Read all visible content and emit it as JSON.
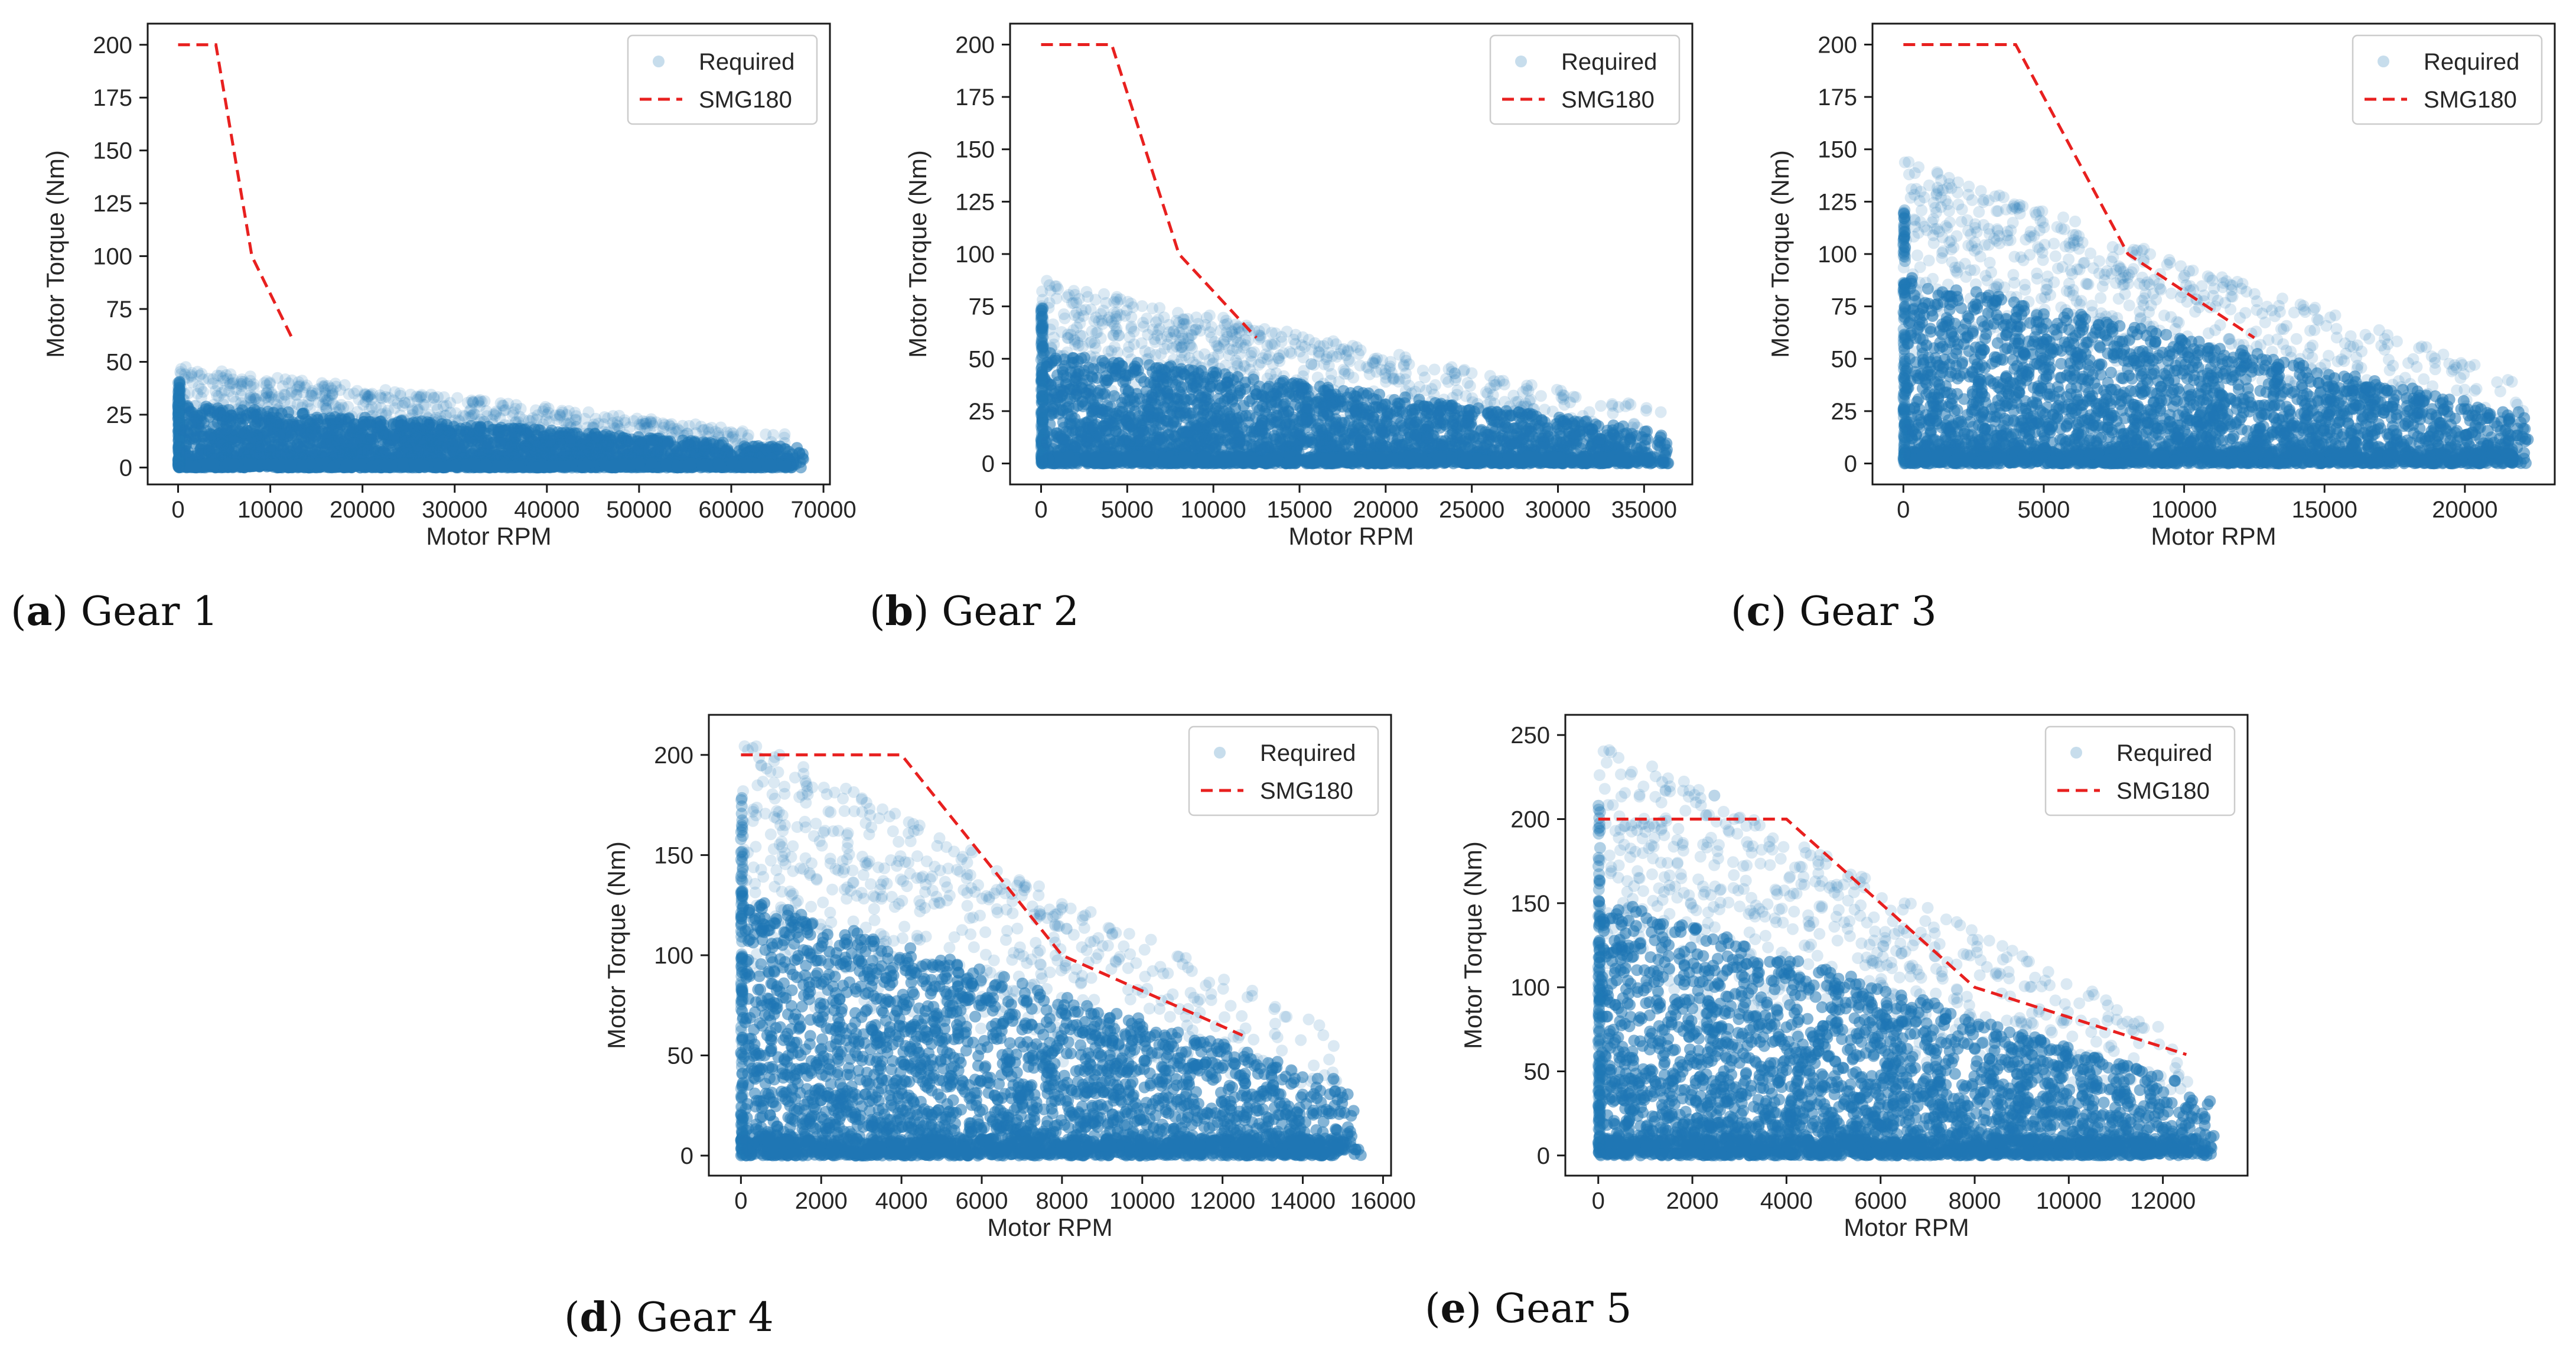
{
  "scatter_color": "#1f77b4",
  "curve_color": "#e8201f",
  "chart_data": [
    {
      "type": "scatter",
      "caption_letter": "a",
      "caption_text": "Gear 1",
      "xlabel": "Motor RPM",
      "ylabel": "Motor Torque (Nm)",
      "xlim": [
        -3300,
        70700
      ],
      "ylim": [
        -8,
        210
      ],
      "xticks": [
        0,
        10000,
        20000,
        30000,
        40000,
        50000,
        60000,
        70000
      ],
      "xtick_labels": [
        "0",
        "10000",
        "20000",
        "30000",
        "40000",
        "50000",
        "60000",
        "70000"
      ],
      "yticks": [
        0,
        25,
        50,
        75,
        100,
        125,
        150,
        175,
        200
      ],
      "ytick_labels": [
        "0",
        "25",
        "50",
        "75",
        "100",
        "125",
        "150",
        "175",
        "200"
      ],
      "legend_position": "top-right",
      "legend": [
        "Required",
        "SMG180"
      ],
      "scatter_envelope": {
        "x_max": 68000,
        "torque_at_zero": 48,
        "torque_at_max": 15
      },
      "series": [
        {
          "name": "SMG180",
          "style": "dashed",
          "x": [
            0,
            4100,
            8000,
            12500
          ],
          "y": [
            200,
            200,
            100,
            60
          ]
        }
      ]
    },
    {
      "type": "scatter",
      "caption_letter": "b",
      "caption_text": "Gear 2",
      "xlabel": "Motor RPM",
      "ylabel": "Motor Torque (Nm)",
      "xlim": [
        -1800,
        37800
      ],
      "ylim": [
        -10,
        210
      ],
      "xticks": [
        0,
        5000,
        10000,
        15000,
        20000,
        25000,
        30000,
        35000
      ],
      "xtick_labels": [
        "0",
        "5000",
        "10000",
        "15000",
        "20000",
        "25000",
        "30000",
        "35000"
      ],
      "yticks": [
        0,
        25,
        50,
        75,
        100,
        125,
        150,
        175,
        200
      ],
      "ytick_labels": [
        "0",
        "25",
        "50",
        "75",
        "100",
        "125",
        "150",
        "175",
        "200"
      ],
      "legend_position": "top-right",
      "legend": [
        "Required",
        "SMG180"
      ],
      "scatter_envelope": {
        "x_max": 36500,
        "torque_at_zero": 88,
        "torque_at_max": 25
      },
      "series": [
        {
          "name": "SMG180",
          "style": "dashed",
          "x": [
            0,
            4100,
            8000,
            12500
          ],
          "y": [
            200,
            200,
            100,
            60
          ]
        }
      ]
    },
    {
      "type": "scatter",
      "caption_letter": "c",
      "caption_text": "Gear 3",
      "xlabel": "Motor RPM",
      "ylabel": "Motor Torque (Nm)",
      "xlim": [
        -1100,
        23200
      ],
      "ylim": [
        -10,
        210
      ],
      "xticks": [
        0,
        5000,
        10000,
        15000,
        20000
      ],
      "xtick_labels": [
        "0",
        "5000",
        "10000",
        "15000",
        "20000"
      ],
      "yticks": [
        0,
        25,
        50,
        75,
        100,
        125,
        150,
        175,
        200
      ],
      "ytick_labels": [
        "0",
        "25",
        "50",
        "75",
        "100",
        "125",
        "150",
        "175",
        "200"
      ],
      "legend_position": "top-right",
      "legend": [
        "Required",
        "SMG180"
      ],
      "scatter_envelope": {
        "x_max": 22300,
        "torque_at_zero": 145,
        "torque_at_max": 38
      },
      "series": [
        {
          "name": "SMG180",
          "style": "dashed",
          "x": [
            0,
            4000,
            8000,
            12500
          ],
          "y": [
            200,
            200,
            100,
            60
          ]
        }
      ]
    },
    {
      "type": "scatter",
      "caption_letter": "d",
      "caption_text": "Gear 4",
      "xlabel": "Motor RPM",
      "ylabel": "Motor Torque (Nm)",
      "xlim": [
        -800,
        16200
      ],
      "ylim": [
        -10,
        220
      ],
      "xticks": [
        0,
        2000,
        4000,
        6000,
        8000,
        10000,
        12000,
        14000,
        16000
      ],
      "xtick_labels": [
        "0",
        "2000",
        "4000",
        "6000",
        "8000",
        "10000",
        "12000",
        "14000",
        "16000"
      ],
      "yticks": [
        0,
        50,
        100,
        150,
        200
      ],
      "ytick_labels": [
        "0",
        "50",
        "100",
        "150",
        "200"
      ],
      "legend_position": "top-right",
      "legend": [
        "Required",
        "SMG180"
      ],
      "scatter_envelope": {
        "x_max": 15500,
        "torque_at_zero": 210,
        "torque_at_max": 55
      },
      "series": [
        {
          "name": "SMG180",
          "style": "dashed",
          "x": [
            0,
            4000,
            8000,
            12500
          ],
          "y": [
            200,
            200,
            100,
            60
          ]
        }
      ]
    },
    {
      "type": "scatter",
      "caption_letter": "e",
      "caption_text": "Gear 5",
      "xlabel": "Motor RPM",
      "ylabel": "Motor Torque (Nm)",
      "xlim": [
        -700,
        13800
      ],
      "ylim": [
        -12,
        262
      ],
      "xticks": [
        0,
        2000,
        4000,
        6000,
        8000,
        10000,
        12000
      ],
      "xtick_labels": [
        "0",
        "2000",
        "4000",
        "6000",
        "8000",
        "10000",
        "12000"
      ],
      "yticks": [
        0,
        50,
        100,
        150,
        200,
        250
      ],
      "ytick_labels": [
        "0",
        "50",
        "100",
        "150",
        "200",
        "250"
      ],
      "legend_position": "top-right",
      "legend": [
        "Required",
        "SMG180"
      ],
      "scatter_envelope": {
        "x_max": 13100,
        "torque_at_zero": 250,
        "torque_at_max": 60
      },
      "series": [
        {
          "name": "SMG180",
          "style": "dashed",
          "x": [
            0,
            4000,
            8000,
            12500
          ],
          "y": [
            200,
            200,
            100,
            60
          ]
        }
      ]
    }
  ]
}
